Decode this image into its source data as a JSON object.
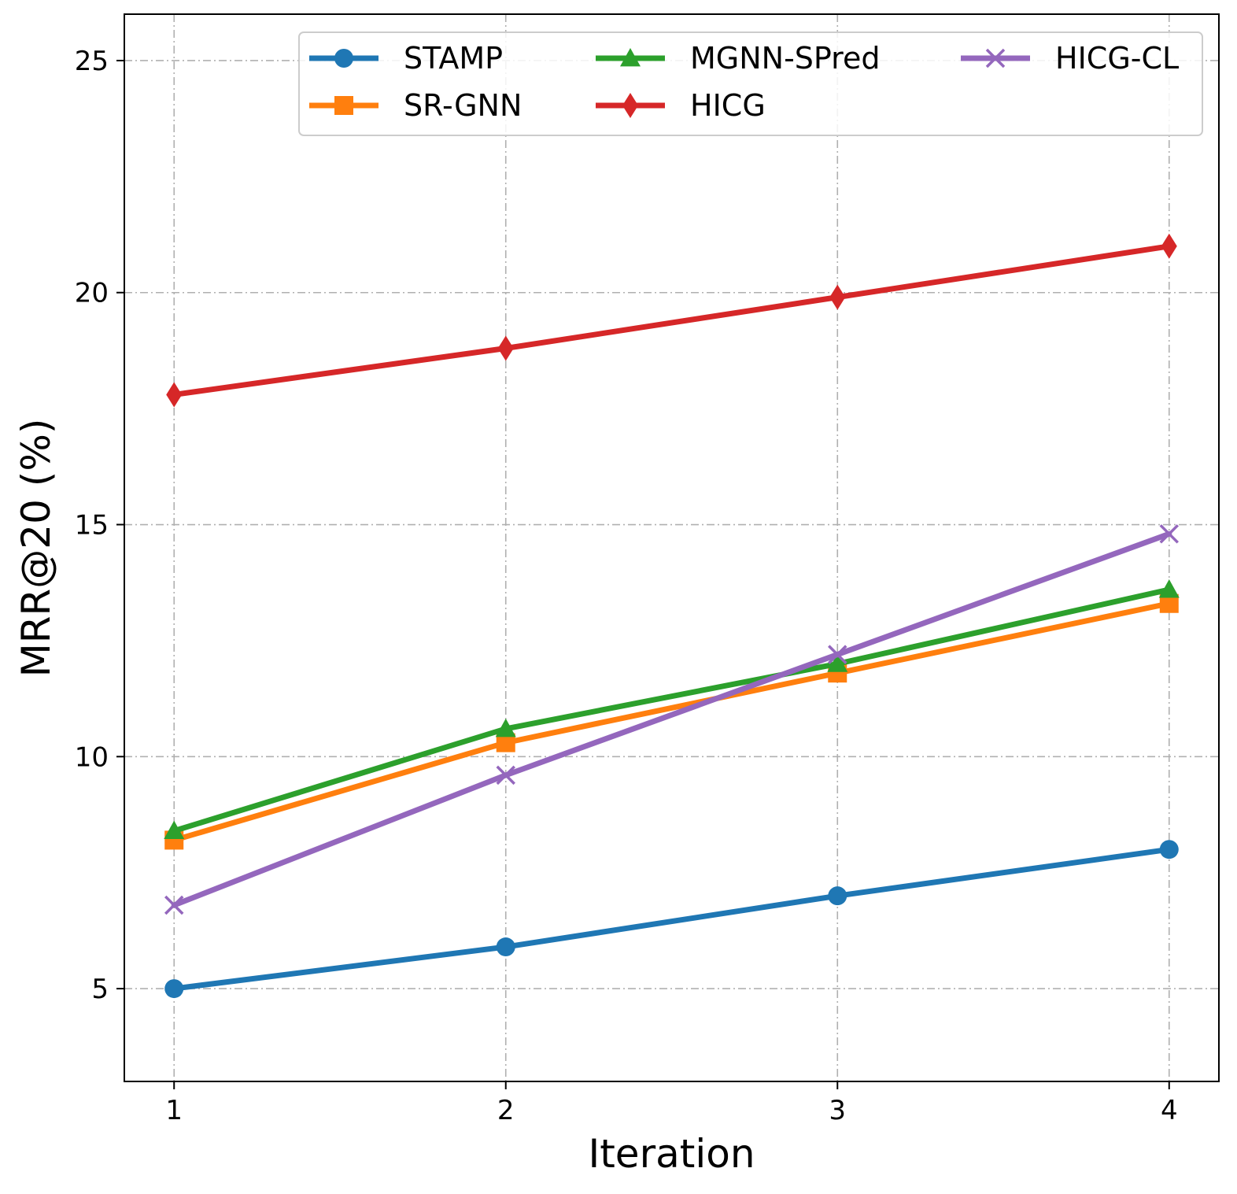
{
  "chart_data": {
    "type": "line",
    "xlabel": "Iteration",
    "ylabel": "MRR@20 (%)",
    "x": [
      1,
      2,
      3,
      4
    ],
    "x_ticks": [
      "1",
      "2",
      "3",
      "4"
    ],
    "y_ticks": [
      "5",
      "10",
      "15",
      "20",
      "25"
    ],
    "xlim": [
      0.85,
      4.15
    ],
    "ylim": [
      3.0,
      26.0
    ],
    "grid": true,
    "legend_position": "top-right",
    "series": [
      {
        "name": "STAMP",
        "color": "#1f77b4",
        "marker": "circle",
        "values": [
          5.0,
          5.9,
          7.0,
          8.0
        ]
      },
      {
        "name": "SR-GNN",
        "color": "#ff7f0e",
        "marker": "square",
        "values": [
          8.2,
          10.3,
          11.8,
          13.3
        ]
      },
      {
        "name": "MGNN-SPred",
        "color": "#2ca02c",
        "marker": "triangle",
        "values": [
          8.4,
          10.6,
          12.0,
          13.6
        ]
      },
      {
        "name": "HICG",
        "color": "#d62728",
        "marker": "diamond",
        "values": [
          17.8,
          18.8,
          19.9,
          21.0
        ]
      },
      {
        "name": "HICG-CL",
        "color": "#9467bd",
        "marker": "x",
        "values": [
          6.8,
          9.6,
          12.2,
          14.8
        ]
      }
    ]
  }
}
